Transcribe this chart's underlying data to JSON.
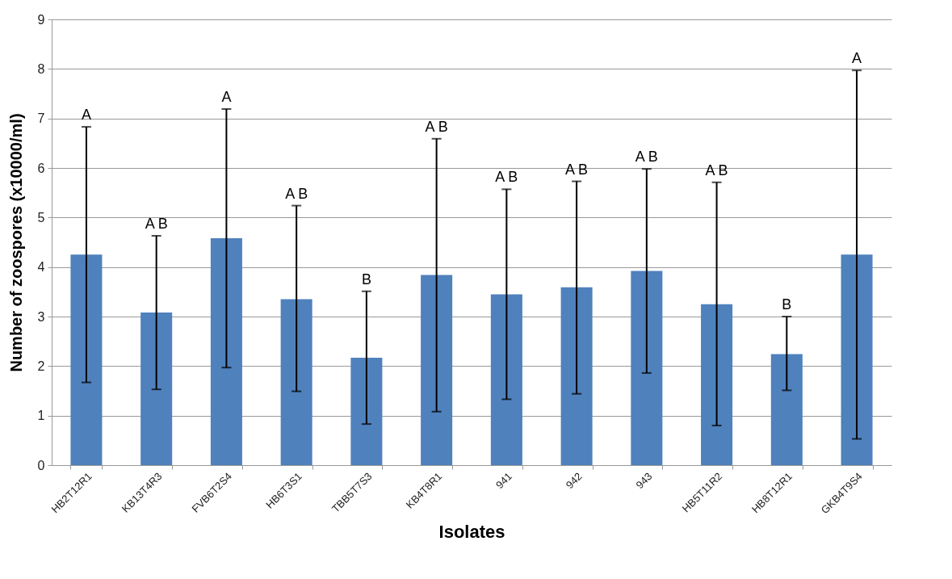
{
  "chart_data": {
    "type": "bar",
    "xlabel": "Isolates",
    "ylabel": "Number of zoospores  (x10000/ml)",
    "categories": [
      "HB2T12R1",
      "KB13T4R3",
      "FVB6T2S4",
      "HB6T3S1",
      "TBB5T7S3",
      "KB4T8R1",
      "941",
      "942",
      "943",
      "HB5T11R2",
      "HB8T12R1",
      "GKB4T9S4"
    ],
    "values": [
      4.25,
      3.08,
      4.58,
      3.35,
      2.17,
      3.84,
      3.45,
      3.59,
      3.92,
      3.25,
      2.24,
      4.25
    ],
    "errors": [
      [
        1.67,
        6.83
      ],
      [
        1.53,
        4.63
      ],
      [
        1.97,
        7.19
      ],
      [
        1.49,
        5.24
      ],
      [
        0.83,
        3.51
      ],
      [
        1.08,
        6.59
      ],
      [
        1.33,
        5.57
      ],
      [
        1.44,
        5.73
      ],
      [
        1.86,
        5.98
      ],
      [
        0.8,
        5.71
      ],
      [
        1.51,
        3.0
      ],
      [
        0.53,
        7.97
      ]
    ],
    "color": "#4f81bd",
    "ylim": [
      0,
      9
    ],
    "yticks": [
      0,
      1,
      2,
      3,
      4,
      5,
      6,
      7,
      8,
      9
    ],
    "grid": "y",
    "annotations": [
      "A",
      "A B",
      "A",
      "A B",
      "B",
      "A B",
      "A B",
      "A B",
      "A B",
      "A B",
      "B",
      "A"
    ]
  }
}
